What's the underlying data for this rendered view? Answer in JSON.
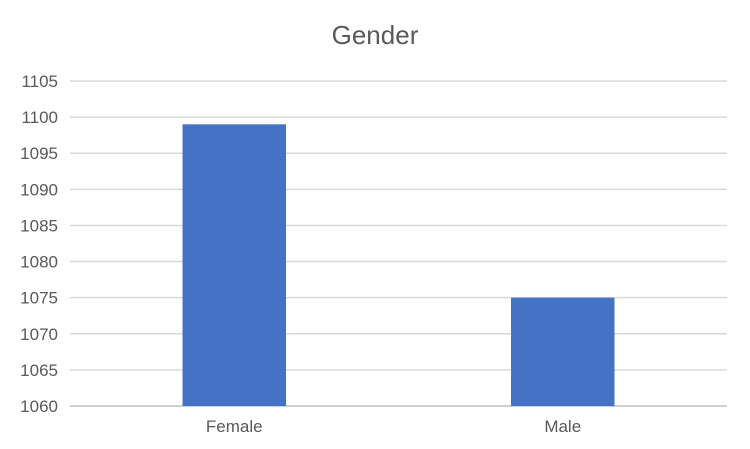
{
  "chart_data": {
    "type": "bar",
    "title": "Gender",
    "categories": [
      "Female",
      "Male"
    ],
    "values": [
      1099,
      1075
    ],
    "ylim": [
      1060,
      1105
    ],
    "yticks": [
      1060,
      1065,
      1070,
      1075,
      1080,
      1085,
      1090,
      1095,
      1100,
      1105
    ],
    "bar_color": "#4472c4",
    "grid": true,
    "legend": "none"
  }
}
